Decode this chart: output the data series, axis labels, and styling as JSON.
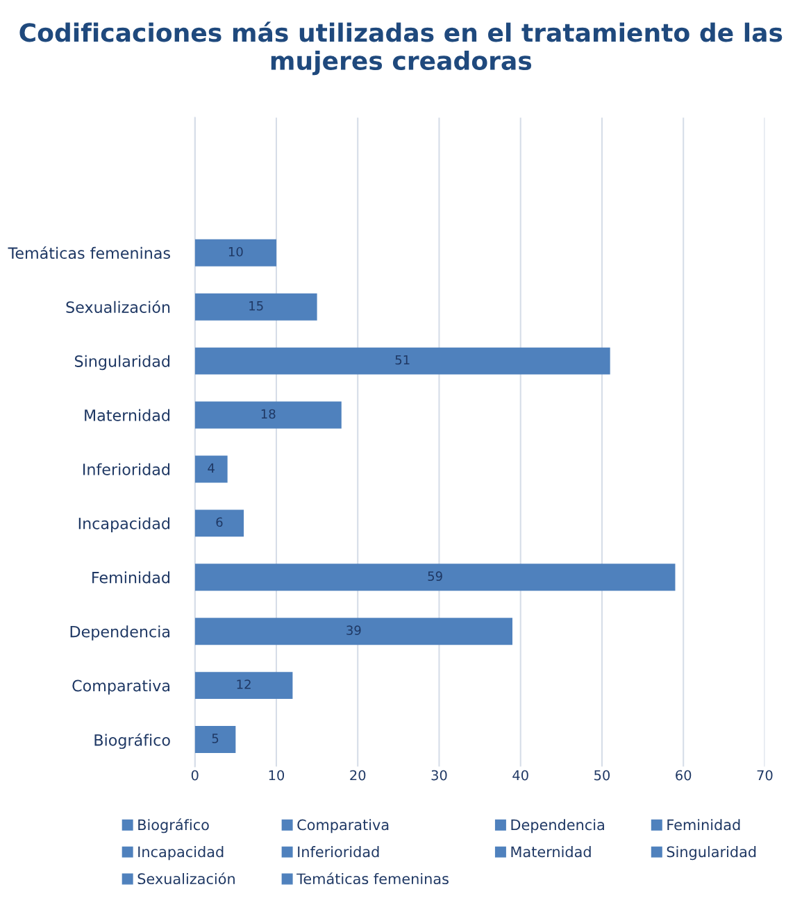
{
  "chart_data": {
    "type": "bar",
    "orientation": "horizontal",
    "title": "Codificaciones más utilizadas en el tratamiento de las mujeres creadoras",
    "categories": [
      null,
      null,
      "Temáticas femeninas",
      "Sexualización",
      "Singularidad",
      "Maternidad",
      "Inferioridad",
      "Incapacidad",
      "Feminidad",
      "Dependencia",
      "Comparativa",
      "Biográfico"
    ],
    "series": [
      {
        "name": "Biográfico",
        "color": "#4f81bd",
        "values": [
          null,
          null,
          null,
          null,
          null,
          null,
          null,
          null,
          null,
          null,
          null,
          5
        ]
      },
      {
        "name": "Comparativa",
        "color": "#4f81bd",
        "values": [
          null,
          null,
          null,
          null,
          null,
          null,
          null,
          null,
          null,
          null,
          12,
          null
        ]
      },
      {
        "name": "Dependencia",
        "color": "#4f81bd",
        "values": [
          null,
          null,
          null,
          null,
          null,
          null,
          null,
          null,
          null,
          39,
          null,
          null
        ]
      },
      {
        "name": "Feminidad",
        "color": "#4f81bd",
        "values": [
          null,
          null,
          null,
          null,
          null,
          null,
          null,
          null,
          59,
          null,
          null,
          null
        ]
      },
      {
        "name": "Incapacidad",
        "color": "#4f81bd",
        "values": [
          null,
          null,
          null,
          null,
          null,
          null,
          null,
          6,
          null,
          null,
          null,
          null
        ]
      },
      {
        "name": "Inferioridad",
        "color": "#4f81bd",
        "values": [
          null,
          null,
          null,
          null,
          null,
          null,
          4,
          null,
          null,
          null,
          null,
          null
        ]
      },
      {
        "name": "Maternidad",
        "color": "#4f81bd",
        "values": [
          null,
          null,
          null,
          null,
          null,
          18,
          null,
          null,
          null,
          null,
          null,
          null
        ]
      },
      {
        "name": "Singularidad",
        "color": "#4f81bd",
        "values": [
          null,
          null,
          null,
          null,
          51,
          null,
          null,
          null,
          null,
          null,
          null,
          null
        ]
      },
      {
        "name": "Sexualización",
        "color": "#4f81bd",
        "values": [
          null,
          null,
          null,
          15,
          null,
          null,
          null,
          null,
          null,
          null,
          null,
          null
        ]
      },
      {
        "name": "Temáticas femeninas",
        "color": "#4f81bd",
        "values": [
          null,
          null,
          10,
          null,
          null,
          null,
          null,
          null,
          null,
          null,
          null,
          null
        ]
      }
    ],
    "xlim": [
      0,
      70
    ],
    "xticks": [
      0,
      10,
      20,
      30,
      40,
      50,
      60,
      70
    ],
    "grid": "x",
    "legend": "bottom",
    "data_labels": true
  }
}
